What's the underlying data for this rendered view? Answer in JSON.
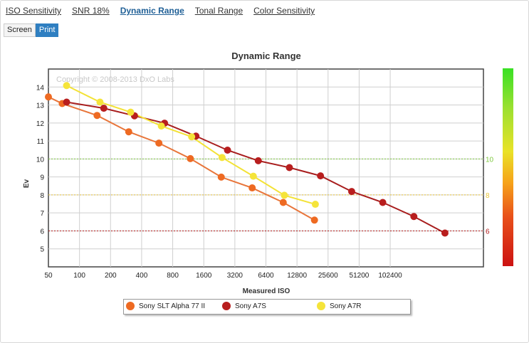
{
  "tabs": [
    "ISO Sensitivity",
    "SNR 18%",
    "Dynamic Range",
    "Tonal Range",
    "Color Sensitivity"
  ],
  "active_tab": "Dynamic Range",
  "view_toggle": {
    "screen": "Screen",
    "print": "Print",
    "active": "Print"
  },
  "copyright": "Copyright © 2008-2013 DxO Labs",
  "colors": {
    "alpha77": "#ee6a22",
    "a7s": "#b81e1e",
    "a7r": "#f5e43a",
    "line_alpha77": "#e8753a",
    "line_a7s": "#a81d1d",
    "line_a7r": "#f3e236"
  },
  "chart_data": {
    "type": "line",
    "title": "Dynamic Range",
    "xlabel": "Measured ISO",
    "ylabel": "Ev",
    "x_scale": "log2",
    "x_ticks": [
      "50",
      "100",
      "200",
      "400",
      "800",
      "1600",
      "3200",
      "6400",
      "12800",
      "25600",
      "51200",
      "102400"
    ],
    "x_tick_values": [
      50,
      100,
      200,
      400,
      800,
      1600,
      3200,
      6400,
      12800,
      25600,
      51200,
      102400
    ],
    "xlim": [
      50,
      819200
    ],
    "ylim": [
      4,
      15
    ],
    "y_ticks": [
      5,
      6,
      7,
      8,
      9,
      10,
      11,
      12,
      13,
      14
    ],
    "grid": true,
    "reference_lines": [
      {
        "value": 10,
        "label": "10",
        "color": "#7ec83e"
      },
      {
        "value": 8,
        "label": "8",
        "color": "#e8c53a"
      },
      {
        "value": 6,
        "label": "6",
        "color": "#b01a1a"
      }
    ],
    "series": [
      {
        "name": "Sony SLT Alpha 77 II",
        "color": "#ee6a22",
        "points": [
          [
            50,
            13.45
          ],
          [
            68,
            13.08
          ],
          [
            148,
            12.42
          ],
          [
            300,
            11.51
          ],
          [
            588,
            10.88
          ],
          [
            1186,
            10.02
          ],
          [
            2363,
            8.99
          ],
          [
            4711,
            8.39
          ],
          [
            9417,
            7.58
          ],
          [
            18900,
            6.6
          ]
        ]
      },
      {
        "name": "Sony A7S",
        "color": "#b81e1e",
        "points": [
          [
            75,
            13.16
          ],
          [
            172,
            12.82
          ],
          [
            341,
            12.4
          ],
          [
            667,
            11.99
          ],
          [
            1343,
            11.27
          ],
          [
            2717,
            10.49
          ],
          [
            5398,
            9.9
          ],
          [
            10808,
            9.52
          ],
          [
            21627,
            9.06
          ],
          [
            43354,
            8.19
          ],
          [
            86708,
            7.58
          ],
          [
            173553,
            6.8
          ],
          [
            347106,
            5.88
          ]
        ]
      },
      {
        "name": "Sony A7R",
        "color": "#f5e43a",
        "points": [
          [
            75,
            14.08
          ],
          [
            158,
            13.16
          ],
          [
            313,
            12.6
          ],
          [
            621,
            11.83
          ],
          [
            1221,
            11.23
          ],
          [
            2406,
            10.08
          ],
          [
            4835,
            9.04
          ],
          [
            9653,
            7.98
          ],
          [
            19274,
            7.48
          ]
        ]
      }
    ]
  }
}
